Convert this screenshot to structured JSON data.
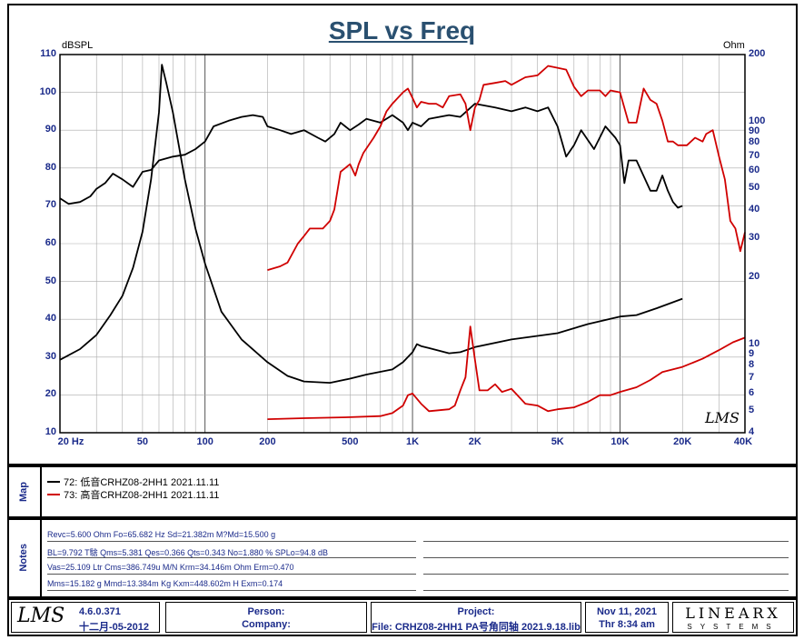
{
  "chart_data": {
    "type": "line",
    "title": "SPL vs Freq",
    "left_axis": {
      "label": "dBSPL",
      "ticks": [
        110,
        100,
        90,
        80,
        70,
        60,
        50,
        40,
        30,
        20,
        10
      ],
      "range": [
        10,
        110
      ]
    },
    "right_axis": {
      "label": "Ohm",
      "ticks": [
        200,
        100,
        90,
        80,
        70,
        60,
        50,
        40,
        30,
        20,
        10,
        9,
        8,
        7,
        6,
        5,
        4
      ],
      "range": [
        4,
        200
      ],
      "scale": "log"
    },
    "x_axis": {
      "scale": "log",
      "range": [
        20,
        40000
      ],
      "tick_labels": [
        {
          "value": 20,
          "label": "20 Hz"
        },
        {
          "value": 50,
          "label": "50"
        },
        {
          "value": 100,
          "label": "100"
        },
        {
          "value": 200,
          "label": "200"
        },
        {
          "value": 500,
          "label": "500"
        },
        {
          "value": 1000,
          "label": "1K"
        },
        {
          "value": 2000,
          "label": "2K"
        },
        {
          "value": 5000,
          "label": "5K"
        },
        {
          "value": 10000,
          "label": "10K"
        },
        {
          "value": 20000,
          "label": "20K"
        },
        {
          "value": 40000,
          "label": "40K"
        }
      ]
    },
    "series": [
      {
        "name": "72: 低音CRHZ08-2HH1 2021.11.11 (SPL)",
        "color": "#000000",
        "axis": "left",
        "points": [
          [
            20,
            72
          ],
          [
            22,
            70.5
          ],
          [
            25,
            71
          ],
          [
            28,
            72.5
          ],
          [
            30,
            74.5
          ],
          [
            33,
            76
          ],
          [
            36,
            78.5
          ],
          [
            40,
            77
          ],
          [
            45,
            75
          ],
          [
            50,
            79
          ],
          [
            55,
            79.5
          ],
          [
            60,
            82
          ],
          [
            70,
            83
          ],
          [
            80,
            83.5
          ],
          [
            90,
            85
          ],
          [
            100,
            87
          ],
          [
            110,
            91
          ],
          [
            130,
            92.5
          ],
          [
            150,
            93.5
          ],
          [
            170,
            94
          ],
          [
            190,
            93.5
          ],
          [
            200,
            91
          ],
          [
            230,
            90
          ],
          [
            260,
            89
          ],
          [
            300,
            90
          ],
          [
            350,
            88
          ],
          [
            380,
            87
          ],
          [
            420,
            89
          ],
          [
            450,
            92
          ],
          [
            500,
            90
          ],
          [
            550,
            91.5
          ],
          [
            600,
            93
          ],
          [
            700,
            92
          ],
          [
            800,
            94
          ],
          [
            900,
            92
          ],
          [
            950,
            90
          ],
          [
            1000,
            92
          ],
          [
            1100,
            91
          ],
          [
            1200,
            93
          ],
          [
            1500,
            94
          ],
          [
            1700,
            93.5
          ],
          [
            2000,
            97
          ],
          [
            2500,
            96
          ],
          [
            3000,
            95
          ],
          [
            3500,
            96
          ],
          [
            4000,
            95
          ],
          [
            4500,
            96
          ],
          [
            5000,
            91
          ],
          [
            5500,
            83
          ],
          [
            6000,
            86
          ],
          [
            6500,
            90
          ],
          [
            7500,
            85
          ],
          [
            8500,
            91
          ],
          [
            9500,
            88
          ],
          [
            10000,
            86
          ],
          [
            10500,
            76
          ],
          [
            11000,
            82
          ],
          [
            12000,
            82
          ],
          [
            14000,
            74
          ],
          [
            15000,
            74
          ],
          [
            16000,
            78
          ],
          [
            17000,
            74
          ],
          [
            18000,
            71
          ],
          [
            19000,
            69.5
          ],
          [
            20000,
            70
          ]
        ]
      },
      {
        "name": "72: 低音CRHZ08-2HH1 2021.11.11 (Impedance)",
        "color": "#000000",
        "axis": "right",
        "points": [
          [
            20,
            8.5
          ],
          [
            25,
            9.5
          ],
          [
            30,
            11
          ],
          [
            35,
            13.5
          ],
          [
            40,
            16.5
          ],
          [
            45,
            22
          ],
          [
            50,
            32
          ],
          [
            55,
            55
          ],
          [
            60,
            110
          ],
          [
            62,
            180
          ],
          [
            65,
            150
          ],
          [
            70,
            110
          ],
          [
            80,
            55
          ],
          [
            90,
            33
          ],
          [
            100,
            23
          ],
          [
            120,
            14
          ],
          [
            150,
            10.5
          ],
          [
            200,
            8.3
          ],
          [
            250,
            7.2
          ],
          [
            300,
            6.8
          ],
          [
            400,
            6.7
          ],
          [
            500,
            7
          ],
          [
            600,
            7.3
          ],
          [
            800,
            7.7
          ],
          [
            900,
            8.3
          ],
          [
            1000,
            9.2
          ],
          [
            1050,
            10
          ],
          [
            1100,
            9.8
          ],
          [
            1200,
            9.6
          ],
          [
            1500,
            9.1
          ],
          [
            1700,
            9.2
          ],
          [
            2000,
            9.7
          ],
          [
            3000,
            10.5
          ],
          [
            5000,
            11.2
          ],
          [
            7000,
            12.3
          ],
          [
            10000,
            13.3
          ],
          [
            12000,
            13.5
          ],
          [
            15000,
            14.5
          ],
          [
            20000,
            16
          ]
        ]
      },
      {
        "name": "73: 高音CRHZ08-2HH1 2021.11.11 (SPL)",
        "color": "#d00000",
        "axis": "left",
        "points": [
          [
            200,
            53
          ],
          [
            230,
            54
          ],
          [
            250,
            55
          ],
          [
            280,
            60
          ],
          [
            300,
            62
          ],
          [
            320,
            64
          ],
          [
            370,
            64
          ],
          [
            400,
            66
          ],
          [
            420,
            69
          ],
          [
            450,
            79
          ],
          [
            500,
            81
          ],
          [
            530,
            78
          ],
          [
            550,
            81
          ],
          [
            580,
            84
          ],
          [
            650,
            88
          ],
          [
            700,
            91
          ],
          [
            750,
            95
          ],
          [
            800,
            97
          ],
          [
            900,
            100
          ],
          [
            950,
            101
          ],
          [
            1000,
            98.5
          ],
          [
            1050,
            96
          ],
          [
            1100,
            97.5
          ],
          [
            1200,
            97
          ],
          [
            1300,
            97
          ],
          [
            1400,
            96
          ],
          [
            1500,
            99
          ],
          [
            1700,
            99.5
          ],
          [
            1800,
            97
          ],
          [
            1900,
            90
          ],
          [
            2000,
            96
          ],
          [
            2100,
            98
          ],
          [
            2200,
            102
          ],
          [
            2500,
            102.5
          ],
          [
            2800,
            103
          ],
          [
            3000,
            102
          ],
          [
            3500,
            104
          ],
          [
            4000,
            104.5
          ],
          [
            4500,
            107
          ],
          [
            5000,
            106.5
          ],
          [
            5500,
            106
          ],
          [
            6000,
            101.5
          ],
          [
            6500,
            99
          ],
          [
            7000,
            100.5
          ],
          [
            8000,
            100.5
          ],
          [
            8500,
            99
          ],
          [
            9000,
            100.5
          ],
          [
            10000,
            100
          ],
          [
            11000,
            92
          ],
          [
            12000,
            92
          ],
          [
            13000,
            101
          ],
          [
            14000,
            98
          ],
          [
            15000,
            97
          ],
          [
            16000,
            92.5
          ],
          [
            17000,
            87
          ],
          [
            18000,
            87
          ],
          [
            19000,
            86
          ],
          [
            21000,
            86
          ],
          [
            23000,
            88
          ],
          [
            25000,
            87
          ],
          [
            26000,
            89
          ],
          [
            28000,
            90
          ],
          [
            30000,
            83
          ],
          [
            32000,
            77
          ],
          [
            34000,
            66
          ],
          [
            36000,
            64
          ],
          [
            38000,
            58
          ],
          [
            40000,
            63
          ]
        ]
      },
      {
        "name": "73: 高音CRHZ08-2HH1 2021.11.11 (Impedance)",
        "color": "#d00000",
        "axis": "right",
        "points": [
          [
            200,
            4.6
          ],
          [
            300,
            4.65
          ],
          [
            500,
            4.7
          ],
          [
            700,
            4.75
          ],
          [
            800,
            4.9
          ],
          [
            900,
            5.3
          ],
          [
            950,
            5.9
          ],
          [
            1000,
            6
          ],
          [
            1100,
            5.4
          ],
          [
            1200,
            5
          ],
          [
            1500,
            5.1
          ],
          [
            1600,
            5.3
          ],
          [
            1700,
            6.2
          ],
          [
            1800,
            7.1
          ],
          [
            1900,
            12
          ],
          [
            2000,
            8.5
          ],
          [
            2100,
            6.2
          ],
          [
            2300,
            6.2
          ],
          [
            2500,
            6.6
          ],
          [
            2700,
            6.1
          ],
          [
            3000,
            6.3
          ],
          [
            3500,
            5.4
          ],
          [
            4000,
            5.3
          ],
          [
            4500,
            5
          ],
          [
            5000,
            5.1
          ],
          [
            6000,
            5.2
          ],
          [
            7000,
            5.5
          ],
          [
            8000,
            5.9
          ],
          [
            9000,
            5.9
          ],
          [
            10000,
            6.1
          ],
          [
            12000,
            6.4
          ],
          [
            14000,
            6.9
          ],
          [
            16000,
            7.5
          ],
          [
            20000,
            7.9
          ],
          [
            25000,
            8.6
          ],
          [
            30000,
            9.4
          ],
          [
            35000,
            10.2
          ],
          [
            40000,
            10.7
          ]
        ]
      }
    ]
  },
  "watermark": "LMS",
  "legend": [
    {
      "label": "72: 低音CRHZ08-2HH1 2021.11.11",
      "color": "#000000"
    },
    {
      "label": "73: 高音CRHZ08-2HH1 2021.11.11",
      "color": "#d00000"
    }
  ],
  "panels": {
    "map_label": "Map",
    "notes_label": "Notes"
  },
  "notes": [
    "Revc=5.600 Ohm  Fo=65.682 Hz  Sd=21.382m M?Md=15.500 g",
    "BL=9.792 T騇  Qms=5.381  Qes=0.366  Qts=0.343  No=1.880 %  SPLo=94.8 dB",
    "Vas=25.109 Ltr  Cms=386.749u M/N  Krm=34.146m Ohm  Erm=0.470",
    "Mms=15.182 g  Mmd=13.384m Kg  Kxm=448.602m H  Exm=0.174"
  ],
  "footer": {
    "logo": "LMS",
    "version": "4.6.0.371",
    "version_date": "十二月-05-2012",
    "person_label": "Person:",
    "company_label": "Company:",
    "project_label": "Project:",
    "file_label": "File: CRHZ08-2HH1 PA号角同轴 2021.9.18.lib",
    "date": "Nov 11, 2021",
    "time": "Thr  8:34 am",
    "brand_top": "LINEARX",
    "brand_bottom": "SYSTEMS"
  }
}
